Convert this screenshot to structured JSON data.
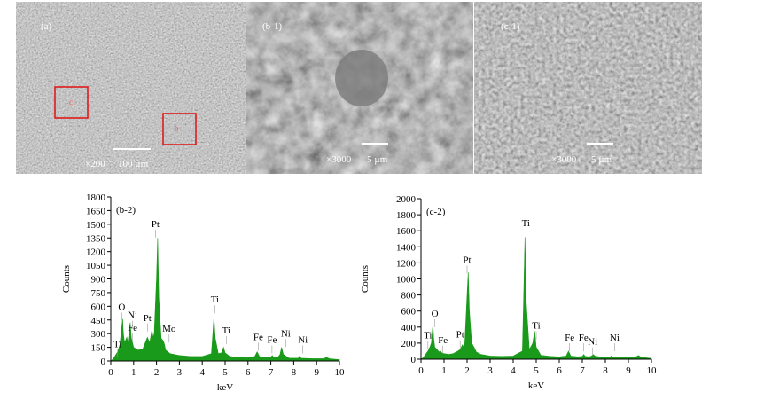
{
  "panels": [
    {
      "label": "(a)",
      "magnification": "×200",
      "scale": "100 µm",
      "boxes": [
        "c",
        "b"
      ]
    },
    {
      "label": "(b-1)",
      "magnification": "×3000",
      "scale": "5 µm"
    },
    {
      "label": "(c-1)",
      "magnification": "×3000",
      "scale": "5 µm"
    }
  ],
  "chart_data": [
    {
      "type": "area",
      "panel_label": "(b-2)",
      "x_label": "keV",
      "y_label": "Counts",
      "color": "#1a9a1a",
      "x": [
        0,
        0.1,
        0.2,
        0.3,
        0.4,
        0.45,
        0.5,
        0.52,
        0.55,
        0.6,
        0.7,
        0.75,
        0.8,
        0.85,
        0.9,
        1.0,
        1.2,
        1.4,
        1.6,
        1.7,
        1.8,
        1.85,
        1.9,
        2.0,
        2.05,
        2.1,
        2.2,
        2.3,
        2.35,
        2.4,
        2.6,
        3.0,
        3.5,
        4.0,
        4.4,
        4.45,
        4.51,
        4.57,
        4.7,
        4.85,
        4.93,
        5.0,
        5.2,
        5.6,
        6.0,
        6.3,
        6.4,
        6.5,
        6.8,
        7.0,
        7.06,
        7.12,
        7.3,
        7.4,
        7.47,
        7.55,
        7.8,
        8.2,
        8.26,
        8.32,
        8.8,
        9.3,
        9.44,
        9.55,
        10
      ],
      "values": [
        0,
        20,
        60,
        100,
        180,
        300,
        420,
        460,
        300,
        200,
        260,
        200,
        300,
        420,
        250,
        150,
        120,
        130,
        260,
        200,
        340,
        260,
        300,
        900,
        1350,
        700,
        250,
        220,
        180,
        120,
        80,
        60,
        50,
        50,
        80,
        250,
        480,
        250,
        80,
        90,
        150,
        90,
        50,
        40,
        35,
        50,
        100,
        50,
        35,
        40,
        60,
        40,
        40,
        70,
        150,
        70,
        30,
        30,
        55,
        30,
        25,
        25,
        40,
        25,
        15
      ],
      "annotations": [
        "O",
        "Ti",
        "Ni",
        "Fe",
        "Pt",
        "Pt",
        "Mo",
        "Ti",
        "Ti",
        "Fe",
        "Fe",
        "Ni",
        "Ni"
      ],
      "xlim": [
        0,
        10
      ],
      "xticks": [
        0,
        1,
        2,
        3,
        4,
        5,
        6,
        7,
        8,
        9,
        10
      ],
      "ylim": [
        0,
        1800
      ],
      "yticks": [
        0,
        150,
        300,
        450,
        600,
        750,
        900,
        1050,
        1200,
        1350,
        1500,
        1650,
        1800
      ]
    },
    {
      "type": "area",
      "panel_label": "(c-2)",
      "x_label": "keV",
      "y_label": "Counts",
      "color": "#1a9a1a",
      "x": [
        0,
        0.1,
        0.2,
        0.3,
        0.4,
        0.45,
        0.5,
        0.52,
        0.55,
        0.6,
        0.7,
        0.75,
        0.8,
        0.85,
        0.9,
        1.0,
        1.2,
        1.4,
        1.6,
        1.7,
        1.8,
        1.85,
        1.9,
        2.0,
        2.05,
        2.1,
        2.2,
        2.3,
        2.35,
        2.4,
        2.6,
        3.0,
        3.5,
        4.0,
        4.4,
        4.45,
        4.51,
        4.57,
        4.7,
        4.85,
        4.93,
        5.0,
        5.2,
        5.6,
        6.0,
        6.3,
        6.4,
        6.5,
        6.8,
        7.0,
        7.06,
        7.12,
        7.3,
        7.4,
        7.47,
        7.55,
        7.8,
        8.2,
        8.26,
        8.32,
        8.8,
        9.3,
        9.44,
        9.55,
        10
      ],
      "values": [
        0,
        20,
        60,
        100,
        160,
        200,
        380,
        430,
        260,
        150,
        120,
        100,
        90,
        100,
        80,
        70,
        60,
        70,
        100,
        120,
        180,
        150,
        200,
        800,
        1080,
        600,
        200,
        150,
        120,
        90,
        60,
        40,
        35,
        40,
        100,
        700,
        1520,
        700,
        120,
        200,
        350,
        150,
        50,
        35,
        30,
        40,
        100,
        40,
        30,
        35,
        60,
        35,
        30,
        40,
        60,
        40,
        25,
        25,
        40,
        25,
        20,
        25,
        45,
        25,
        10
      ],
      "annotations": [
        "O",
        "Ti",
        "Fe",
        "Pt",
        "Pt",
        "Ti",
        "Ti",
        "Fe",
        "Fe",
        "Ni",
        "Ni"
      ],
      "xlim": [
        0,
        10
      ],
      "xticks": [
        0,
        1,
        2,
        3,
        4,
        5,
        6,
        7,
        8,
        9,
        10
      ],
      "ylim": [
        0,
        2000
      ],
      "yticks": [
        0,
        200,
        400,
        600,
        800,
        1000,
        1200,
        1400,
        1600,
        1800,
        2000
      ]
    }
  ]
}
